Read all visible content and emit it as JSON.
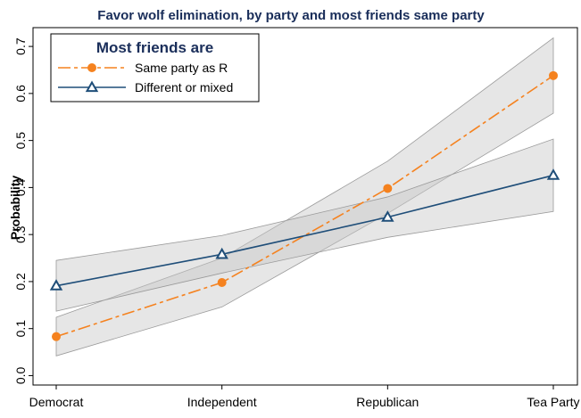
{
  "chart_data": {
    "type": "line",
    "title": "Favor wolf elimination, by party and most friends same party",
    "xlabel": "",
    "ylabel": "Probability",
    "categories": [
      "Democrat",
      "Independent",
      "Republican",
      "Tea Party"
    ],
    "yticks": [
      "0.0",
      "0.1",
      "0.2",
      "0.3",
      "0.4",
      "0.5",
      "0.6",
      "0.7"
    ],
    "ylim": [
      -0.02,
      0.74
    ],
    "grid": false,
    "legend": {
      "title": "Most friends are",
      "placement": "top-left"
    },
    "series": [
      {
        "name": "Same party as R",
        "values": [
          0.083,
          0.198,
          0.398,
          0.638
        ],
        "ci_lower": [
          0.042,
          0.146,
          0.345,
          0.558
        ],
        "ci_upper": [
          0.124,
          0.25,
          0.456,
          0.718
        ],
        "color": "#f5821f",
        "marker": "circle",
        "line_style": "dashed"
      },
      {
        "name": "Different or mixed",
        "values": [
          0.191,
          0.258,
          0.337,
          0.426
        ],
        "ci_lower": [
          0.137,
          0.218,
          0.294,
          0.349
        ],
        "ci_upper": [
          0.245,
          0.298,
          0.38,
          0.503
        ],
        "color": "#1f4e79",
        "marker": "triangle",
        "line_style": "solid"
      }
    ],
    "ci_fill_color": "#c8c8c8"
  }
}
